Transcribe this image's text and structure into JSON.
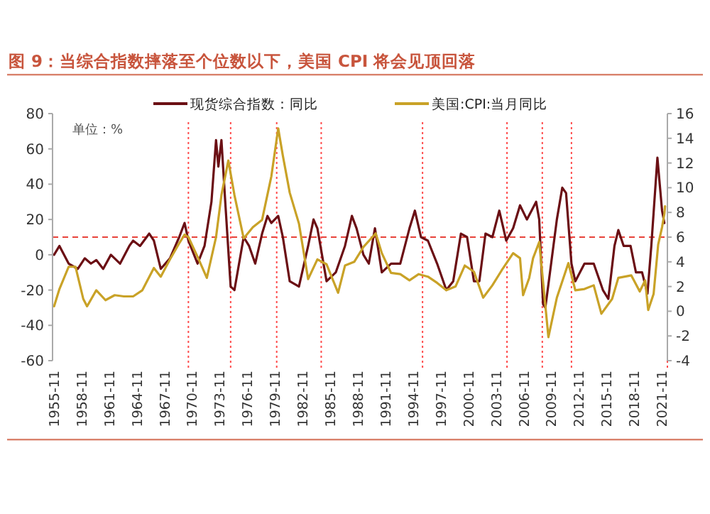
{
  "chart_data": {
    "type": "line",
    "title": "图 9：当综合指数摔落至个位数以下，美国 CPI 将会见顶回落",
    "annotations": [
      "单位：%"
    ],
    "xlim": [
      "1955-09",
      "2022-06"
    ],
    "xticks": [
      "1955-11",
      "1958-11",
      "1961-11",
      "1964-11",
      "1967-11",
      "1970-11",
      "1973-11",
      "1976-11",
      "1979-11",
      "1982-11",
      "1985-11",
      "1988-11",
      "1991-11",
      "1994-11",
      "1997-11",
      "2000-11",
      "2003-11",
      "2006-11",
      "2009-11",
      "2012-11",
      "2015-11",
      "2018-11",
      "2021-11"
    ],
    "ylim": [
      -60,
      80
    ],
    "yticks": [
      -60,
      -40,
      -20,
      0,
      20,
      40,
      60,
      80
    ],
    "y2lim": [
      -4,
      16
    ],
    "y2ticks": [
      -4,
      -2,
      0,
      2,
      4,
      6,
      8,
      10,
      12,
      14,
      16
    ],
    "legend": "top",
    "grid": false,
    "ref_lines": [
      {
        "axis": "y",
        "value": 10,
        "color": "#e8433a",
        "line_style": "dashed"
      },
      {
        "axis": "x",
        "value": "1970-06",
        "color": "#ff4d4d",
        "line_style": "dotted"
      },
      {
        "axis": "x",
        "value": "1975-01",
        "color": "#ff4d4d",
        "line_style": "dotted"
      },
      {
        "axis": "x",
        "value": "1980-01",
        "color": "#ff4d4d",
        "line_style": "dotted"
      },
      {
        "axis": "x",
        "value": "1984-11",
        "color": "#ff4d4d",
        "line_style": "dotted"
      },
      {
        "axis": "x",
        "value": "1995-11",
        "color": "#ff4d4d",
        "line_style": "dotted"
      },
      {
        "axis": "x",
        "value": "2005-01",
        "color": "#ff4d4d",
        "line_style": "dotted"
      },
      {
        "axis": "x",
        "value": "2008-11",
        "color": "#ff4d4d",
        "line_style": "dotted"
      },
      {
        "axis": "x",
        "value": "2012-01",
        "color": "#ff4d4d",
        "line_style": "dotted"
      },
      {
        "axis": "x",
        "value": "2022-06",
        "color": "#ff4d4d",
        "line_style": "dotted"
      }
    ],
    "series": [
      {
        "name": "现货综合指数：同比",
        "color": "#6b0f14",
        "x": [
          "1955-11",
          "1956-06",
          "1957-06",
          "1958-06",
          "1959-03",
          "1959-11",
          "1960-06",
          "1961-03",
          "1962-01",
          "1963-01",
          "1964-01",
          "1964-06",
          "1965-03",
          "1966-03",
          "1966-09",
          "1967-06",
          "1968-06",
          "1969-06",
          "1970-01",
          "1970-06",
          "1971-06",
          "1972-03",
          "1972-12",
          "1973-06",
          "1973-09",
          "1974-01",
          "1974-06",
          "1975-01",
          "1975-06",
          "1976-06",
          "1977-01",
          "1977-09",
          "1978-06",
          "1979-01",
          "1979-06",
          "1980-03",
          "1980-09",
          "1981-06",
          "1982-06",
          "1983-06",
          "1984-01",
          "1984-06",
          "1985-06",
          "1986-06",
          "1987-06",
          "1988-03",
          "1988-09",
          "1989-06",
          "1990-01",
          "1990-09",
          "1991-06",
          "1992-06",
          "1993-06",
          "1994-06",
          "1995-01",
          "1995-09",
          "1996-06",
          "1997-06",
          "1998-06",
          "1999-03",
          "2000-01",
          "2000-09",
          "2001-06",
          "2002-01",
          "2002-09",
          "2003-06",
          "2004-03",
          "2004-12",
          "2005-09",
          "2006-06",
          "2007-03",
          "2007-09",
          "2008-03",
          "2008-07",
          "2008-12",
          "2009-03",
          "2009-09",
          "2010-06",
          "2011-01",
          "2011-06",
          "2012-01",
          "2012-06",
          "2013-06",
          "2014-06",
          "2015-06",
          "2016-01",
          "2016-09",
          "2017-02",
          "2017-09",
          "2018-06",
          "2019-01",
          "2019-09",
          "2020-04",
          "2020-09",
          "2021-05",
          "2021-08",
          "2021-11",
          "2022-02"
        ],
        "values": [
          0,
          5,
          -5,
          -8,
          -2,
          -5,
          -3,
          -8,
          0,
          -5,
          5,
          8,
          5,
          12,
          8,
          -8,
          -2,
          10,
          18,
          8,
          -5,
          5,
          30,
          65,
          50,
          65,
          30,
          -18,
          -20,
          10,
          5,
          -5,
          12,
          22,
          18,
          22,
          10,
          -15,
          -18,
          5,
          20,
          15,
          -15,
          -10,
          5,
          22,
          15,
          0,
          -5,
          15,
          -10,
          -5,
          -5,
          15,
          25,
          10,
          8,
          -5,
          -20,
          -15,
          12,
          10,
          -15,
          -15,
          12,
          10,
          25,
          8,
          15,
          28,
          20,
          25,
          30,
          20,
          -28,
          -30,
          -10,
          20,
          38,
          35,
          -5,
          -15,
          -5,
          -5,
          -20,
          -25,
          5,
          14,
          5,
          5,
          -10,
          -10,
          -22,
          5,
          55,
          40,
          25,
          18
        ]
      },
      {
        "name": "美国:CPI:当月同比",
        "color": "#c9a227",
        "axis": "y2",
        "x": [
          "1955-11",
          "1956-06",
          "1957-06",
          "1958-03",
          "1959-01",
          "1959-06",
          "1960-06",
          "1961-06",
          "1962-06",
          "1963-06",
          "1964-06",
          "1965-06",
          "1966-09",
          "1967-06",
          "1968-06",
          "1969-06",
          "1970-01",
          "1970-06",
          "1971-06",
          "1972-06",
          "1973-06",
          "1974-01",
          "1974-10",
          "1975-06",
          "1976-06",
          "1977-06",
          "1978-06",
          "1979-06",
          "1980-03",
          "1980-09",
          "1981-06",
          "1982-06",
          "1983-06",
          "1984-06",
          "1985-06",
          "1986-09",
          "1987-06",
          "1988-06",
          "1989-06",
          "1990-10",
          "1991-06",
          "1992-06",
          "1993-06",
          "1994-06",
          "1995-06",
          "1996-06",
          "1997-06",
          "1998-06",
          "1999-06",
          "2000-06",
          "2001-06",
          "2002-06",
          "2003-06",
          "2004-06",
          "2005-09",
          "2006-06",
          "2006-10",
          "2007-06",
          "2007-11",
          "2008-07",
          "2009-07",
          "2010-06",
          "2011-09",
          "2012-06",
          "2013-06",
          "2014-06",
          "2015-04",
          "2016-06",
          "2017-02",
          "2018-07",
          "2019-06",
          "2020-01",
          "2020-05",
          "2020-12",
          "2021-06",
          "2021-11",
          "2022-02",
          "2022-03"
        ],
        "values": [
          0.4,
          1.8,
          3.6,
          3.6,
          1.0,
          0.4,
          1.7,
          0.9,
          1.3,
          1.2,
          1.2,
          1.7,
          3.5,
          2.8,
          4.2,
          5.5,
          6.2,
          6.0,
          4.4,
          2.7,
          6.0,
          9.4,
          12.2,
          9.4,
          5.9,
          6.8,
          7.4,
          10.9,
          14.8,
          12.6,
          9.6,
          7.1,
          2.6,
          4.2,
          3.8,
          1.5,
          3.7,
          4.0,
          5.2,
          6.3,
          4.7,
          3.1,
          3.0,
          2.5,
          3.0,
          2.8,
          2.3,
          1.7,
          2.0,
          3.7,
          3.2,
          1.1,
          2.1,
          3.3,
          4.7,
          4.3,
          1.3,
          2.7,
          4.3,
          5.6,
          -2.1,
          1.1,
          3.9,
          1.7,
          1.8,
          2.1,
          -0.2,
          1.0,
          2.7,
          2.9,
          1.6,
          2.5,
          0.1,
          1.4,
          5.4,
          6.8,
          7.9,
          8.5
        ]
      }
    ]
  }
}
